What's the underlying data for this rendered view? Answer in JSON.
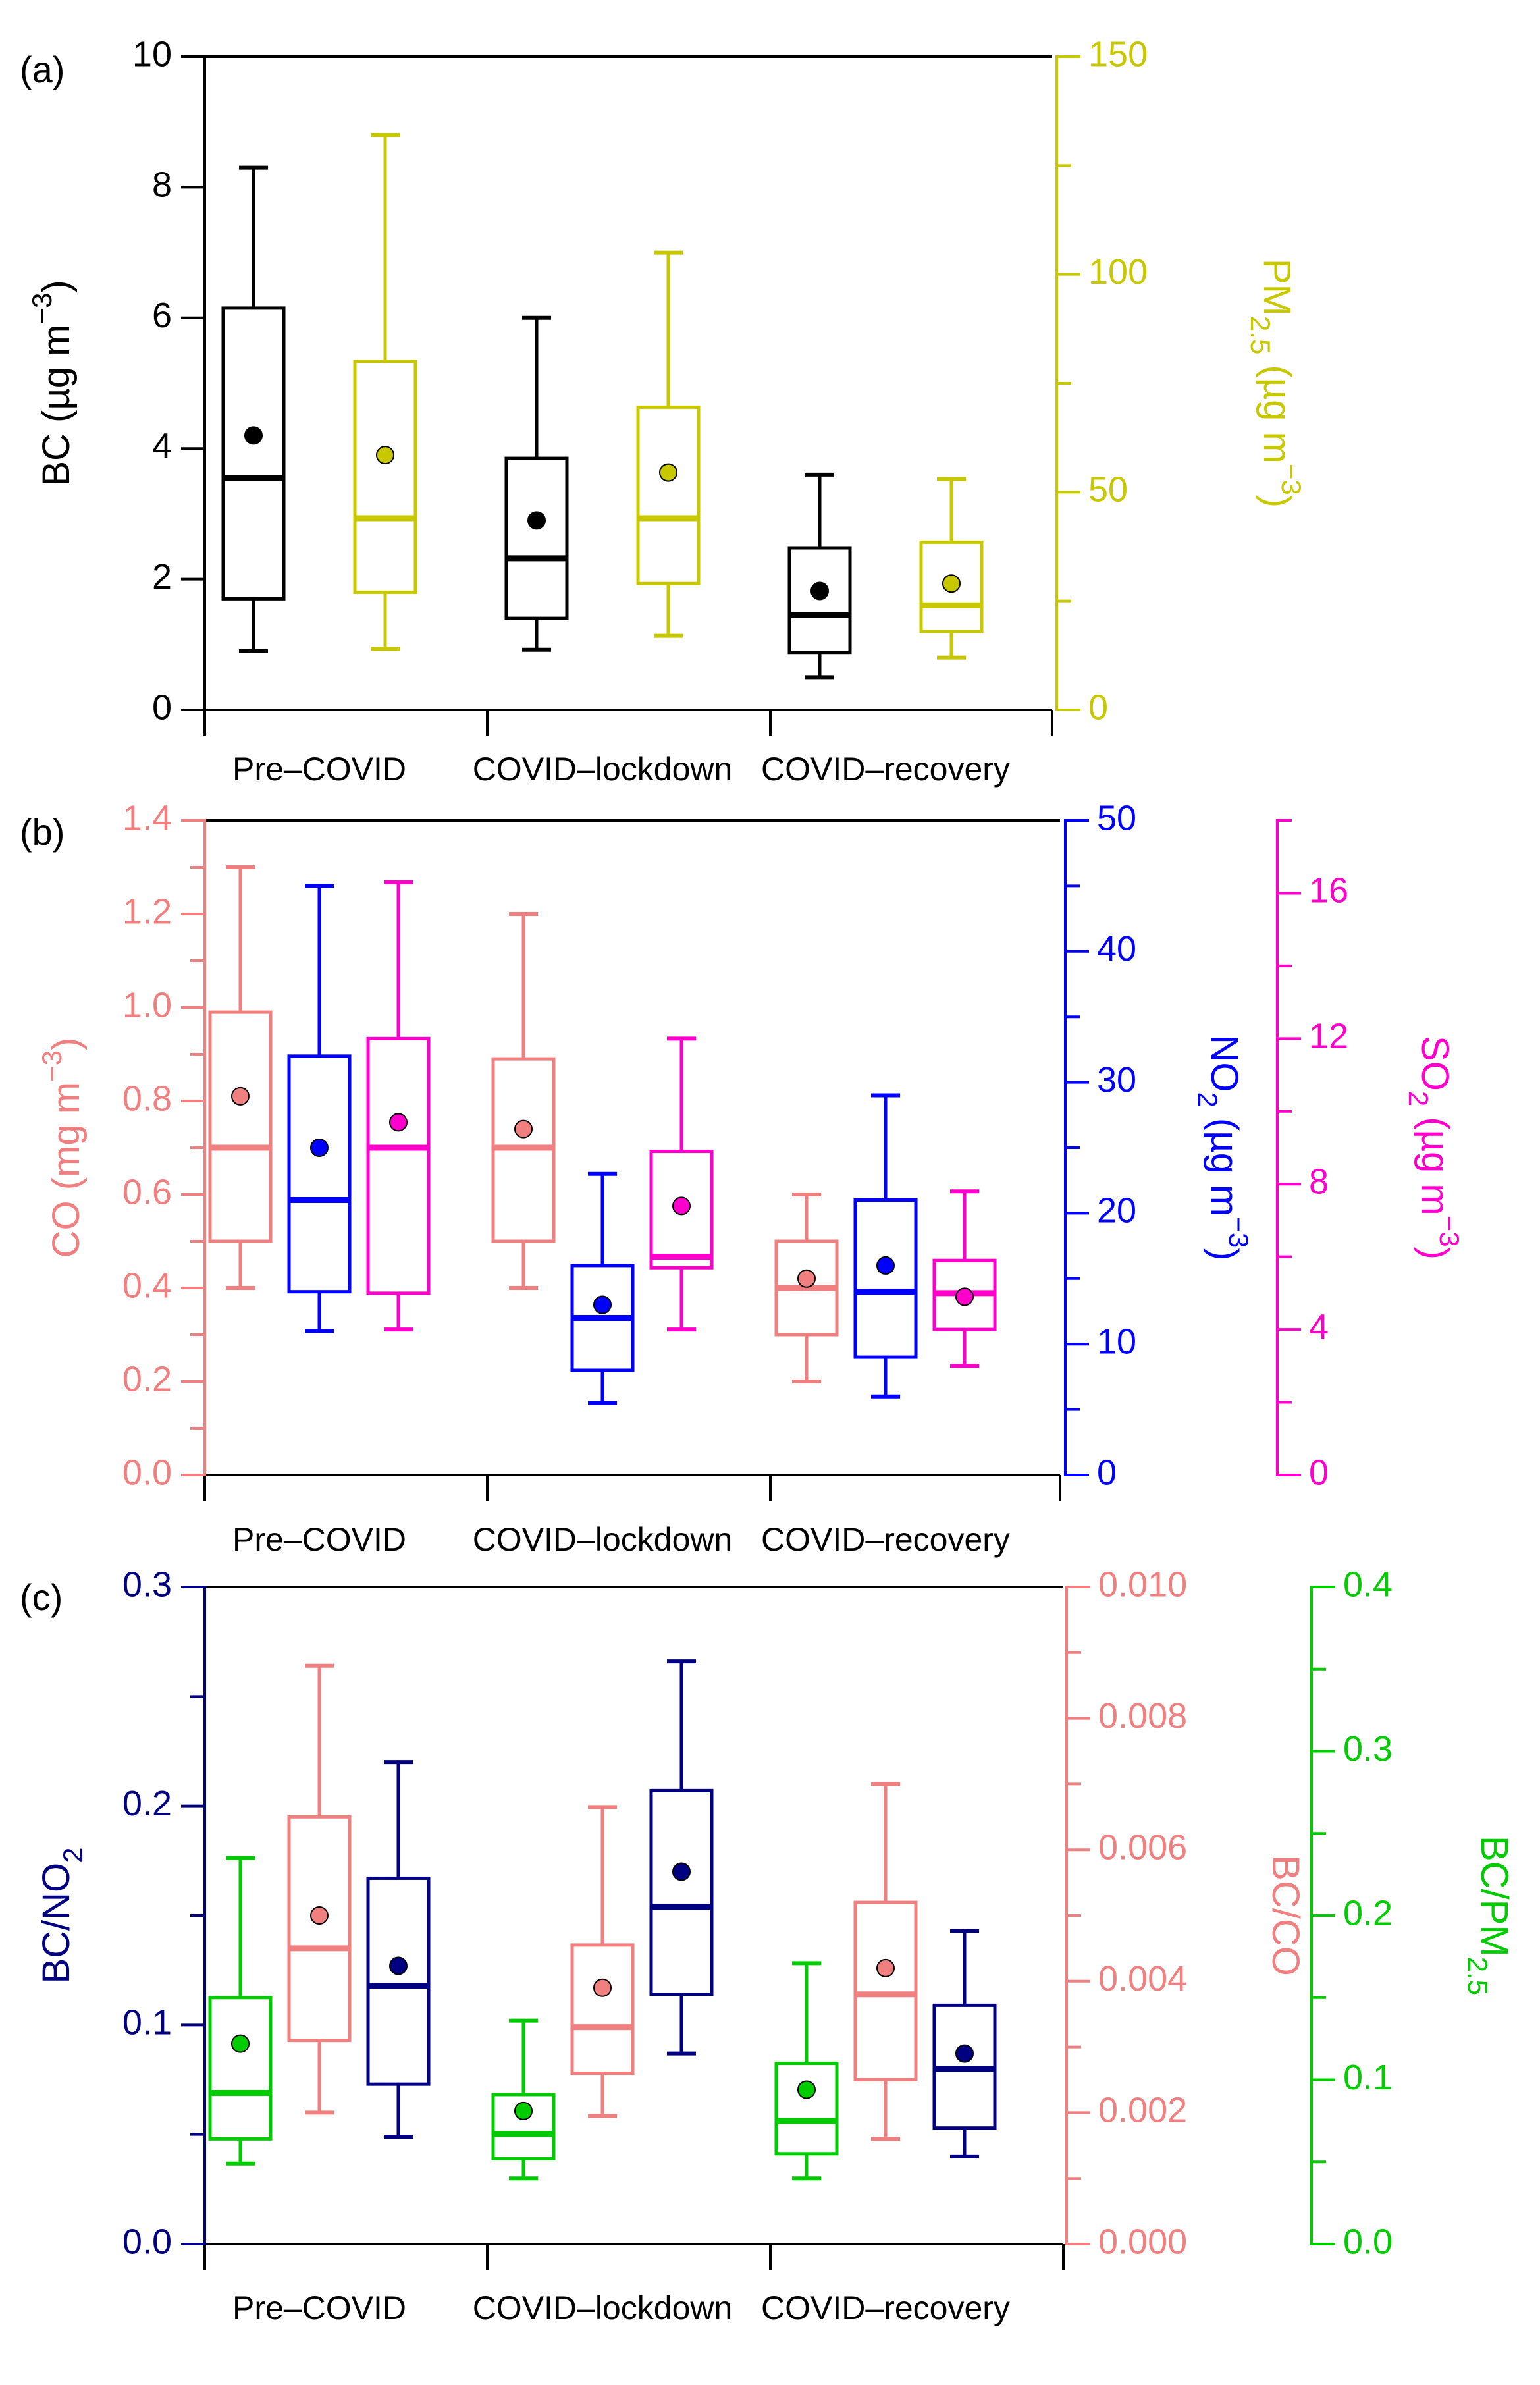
{
  "figure": {
    "categories": [
      "Pre–COVID",
      "COVID–lockdown",
      "COVID–recovery"
    ]
  },
  "chart_data": [
    {
      "type": "box",
      "panel_label": "(a)",
      "title": "",
      "xlabel": "",
      "categories": [
        "Pre–COVID",
        "COVID–lockdown",
        "COVID–recovery"
      ],
      "axes": [
        {
          "id": "bc",
          "side": "left",
          "label": "BC (µg m^−3)",
          "color": "#000000",
          "range": [
            0,
            10
          ],
          "ticks": [
            "0",
            "2",
            "4",
            "6",
            "8",
            "10"
          ]
        },
        {
          "id": "pm",
          "side": "right",
          "label": "PM2.5 (µg m^−3)",
          "color": "#c8c800",
          "range": [
            0,
            150
          ],
          "ticks": [
            "0",
            "50",
            "100",
            "150"
          ]
        }
      ],
      "series": [
        {
          "name": "BC",
          "axis": "bc",
          "color": "#000000",
          "boxes": [
            {
              "whisker_low": 0.9,
              "q1": 1.7,
              "median": 3.55,
              "q3": 6.15,
              "whisker_high": 8.3,
              "mean": 4.2
            },
            {
              "whisker_low": 0.92,
              "q1": 1.4,
              "median": 2.32,
              "q3": 3.85,
              "whisker_high": 6.0,
              "mean": 2.9
            },
            {
              "whisker_low": 0.5,
              "q1": 0.88,
              "median": 1.45,
              "q3": 2.48,
              "whisker_high": 3.6,
              "mean": 1.82
            }
          ]
        },
        {
          "name": "PM2.5",
          "axis": "pm",
          "color": "#c8c800",
          "boxes": [
            {
              "whisker_low": 14,
              "q1": 27,
              "median": 44,
              "q3": 80,
              "whisker_high": 132,
              "mean": 58.5
            },
            {
              "whisker_low": 17,
              "q1": 29,
              "median": 44,
              "q3": 69.5,
              "whisker_high": 105,
              "mean": 54.5
            },
            {
              "whisker_low": 12,
              "q1": 18,
              "median": 24,
              "q3": 38.5,
              "whisker_high": 53,
              "mean": 29
            }
          ]
        }
      ]
    },
    {
      "type": "box",
      "panel_label": "(b)",
      "title": "",
      "xlabel": "",
      "categories": [
        "Pre–COVID",
        "COVID–lockdown",
        "COVID–recovery"
      ],
      "axes": [
        {
          "id": "co",
          "side": "left",
          "label": "CO (mg m^−3)",
          "color": "#f08080",
          "range": [
            0,
            1.4
          ],
          "ticks": [
            "0.0",
            "0.2",
            "0.4",
            "0.6",
            "0.8",
            "1.0",
            "1.2",
            "1.4"
          ]
        },
        {
          "id": "no2",
          "side": "right",
          "label": "NO2 (µg m^−3)",
          "color": "#0000ff",
          "range": [
            0,
            50
          ],
          "ticks": [
            "0",
            "10",
            "20",
            "30",
            "40",
            "50"
          ]
        },
        {
          "id": "so2",
          "side": "right-outer",
          "label": "SO2 (µg m^−3)",
          "color": "#ff00cc",
          "range": [
            0,
            18
          ],
          "ticks": [
            "0",
            "4",
            "8",
            "12",
            "16"
          ]
        }
      ],
      "series": [
        {
          "name": "CO",
          "axis": "co",
          "color": "#f08080",
          "boxes": [
            {
              "whisker_low": 0.4,
              "q1": 0.5,
              "median": 0.7,
              "q3": 0.99,
              "whisker_high": 1.3,
              "mean": 0.81
            },
            {
              "whisker_low": 0.4,
              "q1": 0.5,
              "median": 0.7,
              "q3": 0.89,
              "whisker_high": 1.2,
              "mean": 0.74
            },
            {
              "whisker_low": 0.2,
              "q1": 0.3,
              "median": 0.4,
              "q3": 0.5,
              "whisker_high": 0.6,
              "mean": 0.42
            }
          ]
        },
        {
          "name": "NO2",
          "axis": "no2",
          "color": "#0000ff",
          "boxes": [
            {
              "whisker_low": 11,
              "q1": 14,
              "median": 21,
              "q3": 32,
              "whisker_high": 45,
              "mean": 25
            },
            {
              "whisker_low": 5.5,
              "q1": 8,
              "median": 12,
              "q3": 16,
              "whisker_high": 23,
              "mean": 13
            },
            {
              "whisker_low": 6,
              "q1": 9,
              "median": 14,
              "q3": 21,
              "whisker_high": 29,
              "mean": 16
            }
          ]
        },
        {
          "name": "SO2",
          "axis": "so2",
          "color": "#ff00cc",
          "boxes": [
            {
              "whisker_low": 4,
              "q1": 5,
              "median": 9,
              "q3": 12,
              "whisker_high": 16.3,
              "mean": 9.7
            },
            {
              "whisker_low": 4,
              "q1": 5.7,
              "median": 6,
              "q3": 8.9,
              "whisker_high": 12,
              "mean": 7.4
            },
            {
              "whisker_low": 3,
              "q1": 4,
              "median": 5,
              "q3": 5.9,
              "whisker_high": 7.8,
              "mean": 4.9
            }
          ]
        }
      ]
    },
    {
      "type": "box",
      "panel_label": "(c)",
      "title": "",
      "xlabel": "",
      "categories": [
        "Pre–COVID",
        "COVID–lockdown",
        "COVID–recovery"
      ],
      "axes": [
        {
          "id": "bcno2",
          "side": "left",
          "label": "BC/NO2",
          "color": "#000080",
          "range": [
            0,
            0.3
          ],
          "ticks": [
            "0.0",
            "0.1",
            "0.2",
            "0.3"
          ]
        },
        {
          "id": "bcco",
          "side": "right",
          "label": "BC/CO",
          "color": "#f08080",
          "range": [
            0,
            0.01
          ],
          "ticks": [
            "0.000",
            "0.002",
            "0.004",
            "0.006",
            "0.008",
            "0.010"
          ]
        },
        {
          "id": "bcpm",
          "side": "right-outer",
          "label": "BC/PM2.5",
          "color": "#00cc00",
          "range": [
            0,
            0.4
          ],
          "ticks": [
            "0.0",
            "0.1",
            "0.2",
            "0.3",
            "0.4"
          ]
        }
      ],
      "series": [
        {
          "name": "BC/PM2.5",
          "axis": "bcpm",
          "color": "#00cc00",
          "boxes": [
            {
              "whisker_low": 0.049,
              "q1": 0.064,
              "median": 0.092,
              "q3": 0.15,
              "whisker_high": 0.235,
              "mean": 0.122
            },
            {
              "whisker_low": 0.04,
              "q1": 0.052,
              "median": 0.067,
              "q3": 0.091,
              "whisker_high": 0.136,
              "mean": 0.081
            },
            {
              "whisker_low": 0.04,
              "q1": 0.055,
              "median": 0.075,
              "q3": 0.11,
              "whisker_high": 0.171,
              "mean": 0.094
            }
          ]
        },
        {
          "name": "BC/CO",
          "axis": "bcco",
          "color": "#f08080",
          "boxes": [
            {
              "whisker_low": 0.002,
              "q1": 0.0031,
              "median": 0.0045,
              "q3": 0.0065,
              "whisker_high": 0.0088,
              "mean": 0.005
            },
            {
              "whisker_low": 0.00195,
              "q1": 0.0026,
              "median": 0.0033,
              "q3": 0.00455,
              "whisker_high": 0.00665,
              "mean": 0.0039
            },
            {
              "whisker_low": 0.0016,
              "q1": 0.0025,
              "median": 0.0038,
              "q3": 0.0052,
              "whisker_high": 0.007,
              "mean": 0.0042
            }
          ]
        },
        {
          "name": "BC/NO2",
          "axis": "bcno2",
          "color": "#000080",
          "boxes": [
            {
              "whisker_low": 0.049,
              "q1": 0.073,
              "median": 0.118,
              "q3": 0.167,
              "whisker_high": 0.22,
              "mean": 0.127
            },
            {
              "whisker_low": 0.087,
              "q1": 0.114,
              "median": 0.154,
              "q3": 0.207,
              "whisker_high": 0.266,
              "mean": 0.17
            },
            {
              "whisker_low": 0.04,
              "q1": 0.053,
              "median": 0.08,
              "q3": 0.109,
              "whisker_high": 0.143,
              "mean": 0.087
            }
          ]
        }
      ]
    }
  ]
}
